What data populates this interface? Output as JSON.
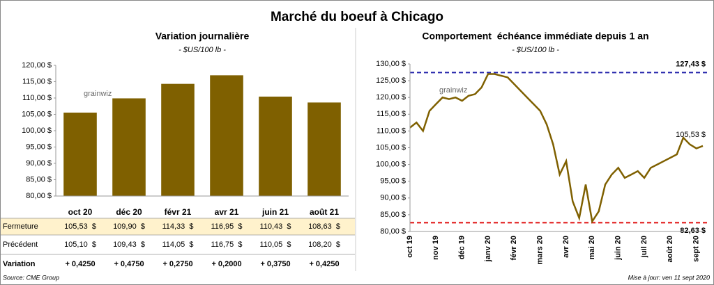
{
  "title": "Marché du boeuf à Chicago",
  "watermark": "grainwiz",
  "chart_data": [
    {
      "type": "bar",
      "title": "Variation journalière",
      "subtitle": "- $US/100 lb -",
      "categories": [
        "oct 20",
        "déc 20",
        "févr 21",
        "avr 21",
        "juin 21",
        "août 21"
      ],
      "values": [
        105.53,
        109.9,
        114.33,
        116.95,
        110.43,
        108.63
      ],
      "color": "#7f6000",
      "grid": false,
      "ylim": [
        80,
        120
      ],
      "yticks": [
        {
          "value": 80,
          "label": "80,00 $"
        },
        {
          "value": 85,
          "label": "85,00 $"
        },
        {
          "value": 90,
          "label": "90,00 $"
        },
        {
          "value": 95,
          "label": "95,00 $"
        },
        {
          "value": 100,
          "label": "100,00 $"
        },
        {
          "value": 105,
          "label": "105,00 $"
        },
        {
          "value": 110,
          "label": "110,00 $"
        },
        {
          "value": 115,
          "label": "115,00 $"
        },
        {
          "value": 120,
          "label": "120,00 $"
        }
      ]
    },
    {
      "type": "line",
      "title": "Comportement  échéance immédiate depuis 1 an",
      "subtitle": "- $US/100 lb -",
      "categories": [
        "oct 19",
        null,
        null,
        null,
        "nov 19",
        null,
        null,
        null,
        "déc 19",
        null,
        null,
        null,
        "janv 20",
        null,
        null,
        null,
        "févr 20",
        null,
        null,
        null,
        "mars 20",
        null,
        null,
        null,
        "avr 20",
        null,
        null,
        null,
        "mai 20",
        null,
        null,
        null,
        "juin 20",
        null,
        null,
        null,
        "juil 20",
        null,
        null,
        null,
        "août 20",
        null,
        null,
        null,
        "sept 20",
        null
      ],
      "series": [
        {
          "name": "Échéance immédiate",
          "color": "#7f6000",
          "values": [
            111,
            112.5,
            110,
            116,
            118,
            120,
            119.5,
            120,
            119,
            120.5,
            121,
            123,
            127,
            127,
            126.5,
            126,
            124,
            122,
            120,
            118,
            116,
            112,
            106,
            97,
            101,
            89,
            84,
            94,
            83,
            86,
            94,
            97,
            99,
            96,
            97,
            98,
            96,
            99,
            100,
            101,
            102,
            103,
            108,
            106,
            104.8,
            105.53
          ],
          "value_labels": [
            null,
            null,
            null,
            null,
            null,
            null,
            null,
            null,
            null,
            null,
            null,
            null,
            null,
            null,
            null,
            null,
            null,
            null,
            null,
            null,
            null,
            null,
            null,
            null,
            null,
            null,
            null,
            null,
            null,
            null,
            null,
            null,
            null,
            null,
            null,
            null,
            null,
            null,
            null,
            null,
            null,
            null,
            null,
            null,
            null,
            "105,53 $"
          ]
        }
      ],
      "reference_lines": [
        {
          "value": 127.43,
          "label": "127,43 $",
          "color": "#2222aa"
        },
        {
          "value": 82.63,
          "label": "82,63 $",
          "color": "#e01010"
        }
      ],
      "grid": false,
      "ylim": [
        80,
        130
      ],
      "yticks": [
        {
          "value": 80,
          "label": "80,00 $"
        },
        {
          "value": 85,
          "label": "85,00 $"
        },
        {
          "value": 90,
          "label": "90,00 $"
        },
        {
          "value": 95,
          "label": "95,00 $"
        },
        {
          "value": 100,
          "label": "100,00 $"
        },
        {
          "value": 105,
          "label": "105,00 $"
        },
        {
          "value": 110,
          "label": "110,00 $"
        },
        {
          "value": 115,
          "label": "115,00 $"
        },
        {
          "value": 120,
          "label": "120,00 $"
        },
        {
          "value": 125,
          "label": "125,00 $"
        },
        {
          "value": 130,
          "label": "130,00 $"
        }
      ]
    }
  ],
  "table": {
    "positive_color": "#1a9a1a",
    "highlight": "#fff2cc",
    "rows": [
      {
        "label": "Fermeture",
        "cells": [
          "105,53  $",
          "109,90  $",
          "114,33  $",
          "116,95  $",
          "110,43  $",
          "108,63  $"
        ]
      },
      {
        "label": "Précédent",
        "cells": [
          "105,10  $",
          "109,43  $",
          "114,05  $",
          "116,75  $",
          "110,05  $",
          "108,20  $"
        ]
      },
      {
        "label": "Variation",
        "cells": [
          "+ 0,4250",
          "+ 0,4750",
          "+ 0,2750",
          "+ 0,2000",
          "+ 0,3750",
          "+ 0,4250"
        ]
      }
    ]
  },
  "source": "Source: CME Group",
  "updated": "Mise à jour: ven 11 sept 2020"
}
